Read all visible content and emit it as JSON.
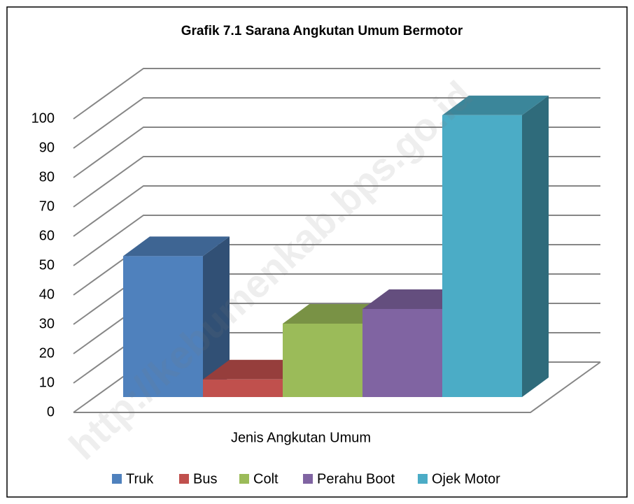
{
  "chart_data": {
    "type": "bar3d",
    "title": "Grafik 7.1 Sarana Angkutan Umum Bermotor",
    "x_label": "Jenis Angkutan Umum",
    "watermark": "http://kebumenkab.bps.go.id",
    "categories": [
      null
    ],
    "series": [
      {
        "name": "Truk",
        "color": "#4f81bd",
        "values": [
          48
        ]
      },
      {
        "name": "Bus",
        "color": "#c0504d",
        "values": [
          6
        ]
      },
      {
        "name": "Colt",
        "color": "#9bbb59",
        "values": [
          25
        ]
      },
      {
        "name": "Perahu Boot",
        "color": "#8064a2",
        "values": [
          30
        ]
      },
      {
        "name": "Ojek Motor",
        "color": "#4bacc6",
        "values": [
          96
        ]
      }
    ],
    "ylim": [
      0,
      100
    ],
    "yticks": [
      0,
      10,
      20,
      30,
      40,
      50,
      60,
      70,
      80,
      90,
      100
    ],
    "grid": true,
    "legend": "bottom"
  }
}
